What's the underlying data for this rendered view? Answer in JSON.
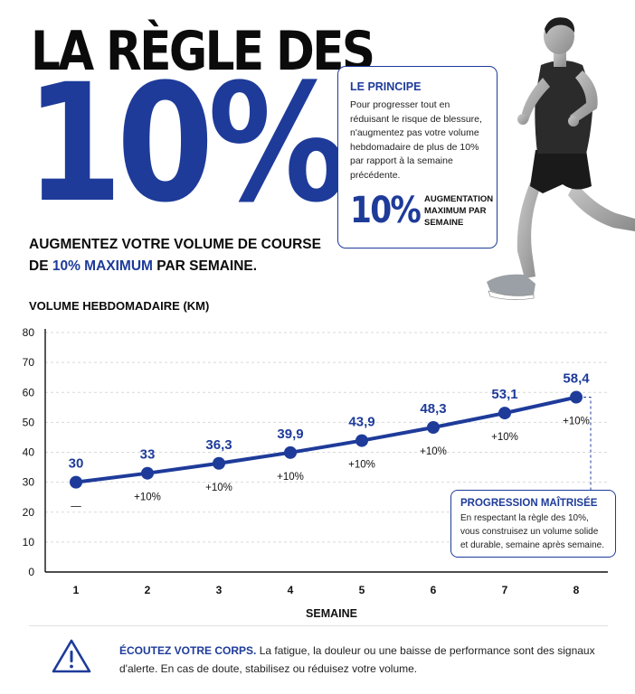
{
  "header": {
    "title_line1": "LA RÈGLE DES",
    "title_line2": "10%",
    "subtitle_part1": "AUGMENTEZ VOTRE VOLUME DE COURSE DE ",
    "subtitle_highlight": "10% MAXIMUM",
    "subtitle_part2": " PAR SEMAINE."
  },
  "principle": {
    "title": "LE PRINCIPE",
    "text": "Pour progresser tout en réduisant le risque de blessure, n'augmentez pas votre volume hebdomadaire de plus de 10% par rapport à la semaine précédente.",
    "stat_value": "10%",
    "stat_label": "AUGMENTATION MAXIMUM PAR SEMAINE"
  },
  "colors": {
    "accent": "#1e3b9a",
    "text": "#0b0b0b",
    "grid": "#d9d9d9"
  },
  "chart_data": {
    "type": "line",
    "title": "VOLUME HEBDOMADAIRE (KM)",
    "xlabel": "SEMAINE",
    "ylabel": "",
    "categories": [
      "1",
      "2",
      "3",
      "4",
      "5",
      "6",
      "7",
      "8"
    ],
    "values": [
      30,
      33,
      36.3,
      39.9,
      43.9,
      48.3,
      53.1,
      58.4
    ],
    "value_labels": [
      "30",
      "33",
      "36,3",
      "39,9",
      "43,9",
      "48,3",
      "53,1",
      "58,4"
    ],
    "increase_labels": [
      "—",
      "+10%",
      "+10%",
      "+10%",
      "+10%",
      "+10%",
      "+10%",
      "+10%"
    ],
    "ylim": [
      0,
      80
    ],
    "yticks": [
      0,
      10,
      20,
      30,
      40,
      50,
      60,
      70,
      80
    ],
    "grid": true
  },
  "callout": {
    "title": "PROGRESSION MAÎTRISÉE",
    "text": "En respectant la règle des 10%, vous construisez un volume solide et durable, semaine après semaine."
  },
  "footer": {
    "icon": "warning-icon",
    "highlight": "ÉCOUTEZ VOTRE CORPS.",
    "text": " La fatigue, la douleur ou une baisse de performance sont des signaux d'alerte. En cas de doute, stabilisez ou réduisez votre volume."
  }
}
